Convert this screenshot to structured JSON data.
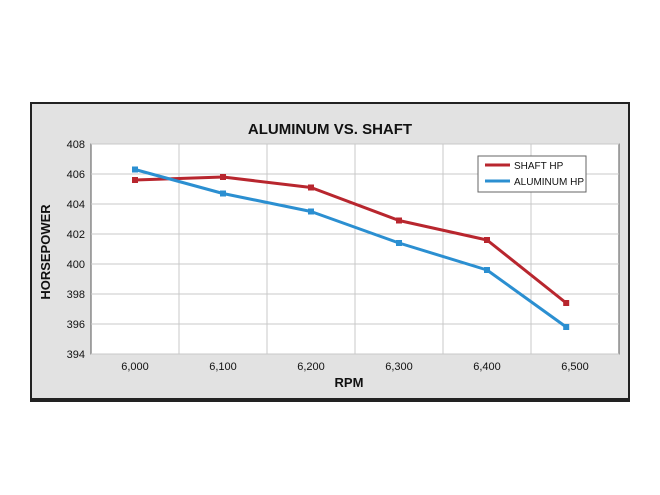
{
  "colors": {
    "frame_fill": "#e2e2e2",
    "plot_fill": "#ffffff",
    "frame_border": "#222222",
    "grid": "#c8c8c8",
    "shaft": "#b8262e",
    "aluminum": "#2b8fd1"
  },
  "chart_data": {
    "type": "line",
    "title": "ALUMINUM VS. SHAFT",
    "xlabel": "RPM",
    "ylabel": "HORSEPOWER",
    "xlim": [
      5950,
      6550
    ],
    "ylim": [
      394,
      408
    ],
    "x_ticks": [
      6000,
      6100,
      6200,
      6300,
      6400,
      6500
    ],
    "x_tick_labels": [
      "6,000",
      "6,100",
      "6,200",
      "6,300",
      "6,400",
      "6,500"
    ],
    "y_ticks": [
      394,
      396,
      398,
      400,
      402,
      404,
      406,
      408
    ],
    "y_tick_labels": [
      "394",
      "396",
      "398",
      "400",
      "402",
      "404",
      "406",
      "408"
    ],
    "grid": true,
    "legend_position": "top-right",
    "series": [
      {
        "name": "SHAFT HP",
        "color_key": "shaft",
        "x": [
          6000,
          6100,
          6200,
          6300,
          6400,
          6490
        ],
        "values": [
          405.6,
          405.8,
          405.1,
          402.9,
          401.6,
          397.4
        ]
      },
      {
        "name": "ALUMINUM HP",
        "color_key": "aluminum",
        "x": [
          6000,
          6100,
          6200,
          6300,
          6400,
          6490
        ],
        "values": [
          406.3,
          404.7,
          403.5,
          401.4,
          399.6,
          395.8
        ]
      }
    ]
  }
}
